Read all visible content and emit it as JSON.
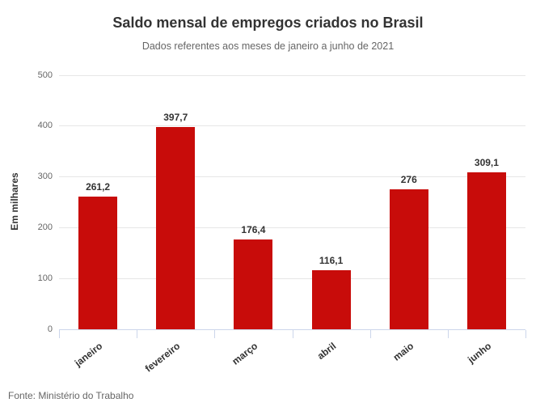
{
  "chart_data": {
    "type": "bar",
    "title": "Saldo mensal de empregos criados no Brasil",
    "subtitle": "Dados referentes aos meses de janeiro a junho de 2021",
    "categories": [
      "janeiro",
      "fevereiro",
      "março",
      "abril",
      "maio",
      "junho"
    ],
    "values": [
      261.2,
      397.7,
      176.4,
      116.1,
      276,
      309.1
    ],
    "value_labels": [
      "261,2",
      "397,7",
      "176,4",
      "116,1",
      "276",
      "309,1"
    ],
    "xlabel": "",
    "ylabel": "Em milhares",
    "ylim": [
      0,
      500
    ],
    "yticks": [
      0,
      100,
      200,
      300,
      400,
      500
    ],
    "grid": true,
    "legend_position": "none",
    "bar_color": "#c80c0a",
    "gridline_color": "#e6e6e6",
    "axis_line_color": "#ccd6eb",
    "source": "Fonte: Ministério do Trabalho"
  }
}
